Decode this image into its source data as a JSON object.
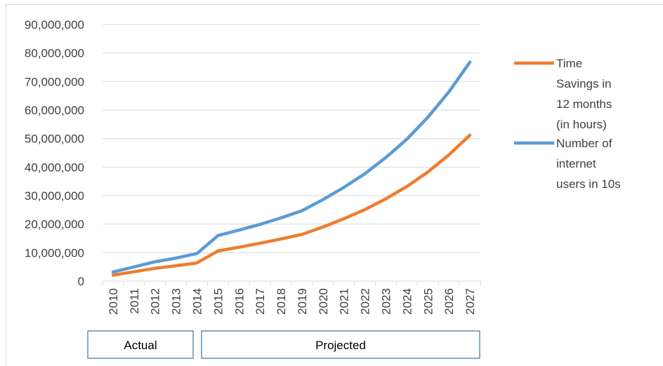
{
  "chart_data": {
    "type": "line",
    "categories": [
      "2010",
      "2011",
      "2012",
      "2013",
      "2014",
      "2015",
      "2016",
      "2017",
      "2018",
      "2019",
      "2020",
      "2021",
      "2022",
      "2023",
      "2024",
      "2025",
      "2026",
      "2027"
    ],
    "ylim": [
      0,
      90000000
    ],
    "y_ticks": [
      0,
      10000000,
      20000000,
      30000000,
      40000000,
      50000000,
      60000000,
      70000000,
      80000000,
      90000000
    ],
    "y_tick_labels": [
      "0",
      "10,000,000",
      "20,000,000",
      "30,000,000",
      "40,000,000",
      "50,000,000",
      "60,000,000",
      "70,000,000",
      "80,000,000",
      "90,000,000"
    ],
    "grid": true,
    "legend_position": "right",
    "series": [
      {
        "name": "Time Savings in 12 months (in hours)",
        "legend_lines": [
          "Time",
          "Savings in",
          "12 months",
          "(in hours)"
        ],
        "color": "#ED7D31",
        "values": [
          2100000,
          3300000,
          4500000,
          5400000,
          6400000,
          10600000,
          11900000,
          13300000,
          14800000,
          16400000,
          19000000,
          21900000,
          25100000,
          28900000,
          33200000,
          38300000,
          44300000,
          51200000
        ]
      },
      {
        "name": "Number of internet users in 10s",
        "legend_lines": [
          "Number of",
          "internet",
          "users in 10s"
        ],
        "color": "#5B9BD5",
        "values": [
          3200000,
          5000000,
          6800000,
          8100000,
          9700000,
          16000000,
          17900000,
          19900000,
          22200000,
          24700000,
          28600000,
          32900000,
          37700000,
          43400000,
          49800000,
          57500000,
          66400000,
          76800000
        ]
      }
    ],
    "period_boxes": [
      {
        "label": "Actual",
        "from": "2010",
        "to": "2014"
      },
      {
        "label": "Projected",
        "from": "2015",
        "to": "2027"
      }
    ]
  }
}
